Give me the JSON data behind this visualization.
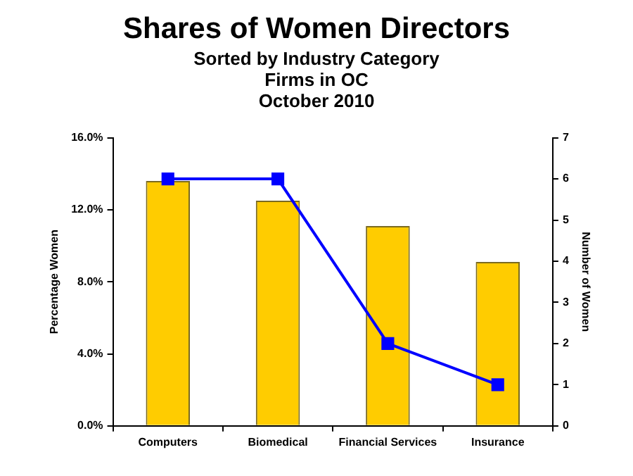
{
  "chart_data": {
    "type": "bar",
    "title": "Shares of Women Directors",
    "subtitle": "Sorted by Industry Category\nFirms in OC\nOctober 2010",
    "ylabel": "Percentage Women",
    "y2label": "Number of Women",
    "categories": [
      "Computers",
      "Biomedical",
      "Financial Services",
      "Insurance"
    ],
    "series": [
      {
        "color": "#ffcc00",
        "values": [
          13.6,
          12.5,
          11.1,
          9.1
        ]
      },
      {
        "type": "line",
        "axis": "y2",
        "color": "#0000ff",
        "marker": "square",
        "values": [
          6,
          6,
          2,
          1
        ]
      }
    ],
    "ylim": [
      0,
      16
    ],
    "yticks": [
      {
        "value": 0,
        "label": "0.0%"
      },
      {
        "value": 4,
        "label": "4.0%"
      },
      {
        "value": 8,
        "label": "8.0%"
      },
      {
        "value": 12,
        "label": "12.0%"
      },
      {
        "value": 16,
        "label": "16.0%"
      }
    ],
    "y2lim": [
      0,
      7
    ],
    "y2ticks": [
      0,
      1,
      2,
      3,
      4,
      5,
      6,
      7
    ],
    "grid": false,
    "legend": false
  }
}
